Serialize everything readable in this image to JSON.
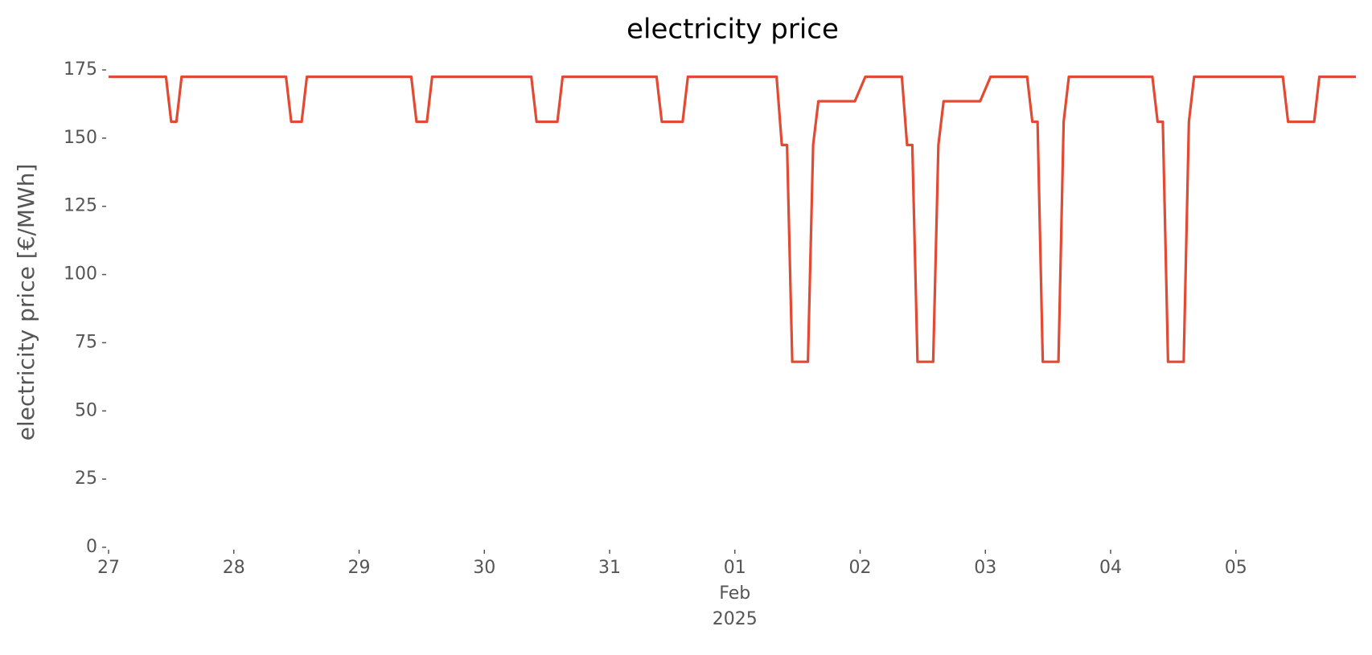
{
  "chart_data": {
    "type": "line",
    "title": "electricity price",
    "ylabel": "electricity price [€/MWh]",
    "color": "#E24A33",
    "x": [
      "2025-01-27T00:00",
      "2025-01-27T11:00",
      "2025-01-27T12:00",
      "2025-01-27T13:00",
      "2025-01-27T14:00",
      "2025-01-28T10:00",
      "2025-01-28T11:00",
      "2025-01-28T13:00",
      "2025-01-28T14:00",
      "2025-01-29T10:00",
      "2025-01-29T11:00",
      "2025-01-29T13:00",
      "2025-01-29T14:00",
      "2025-01-30T09:00",
      "2025-01-30T10:00",
      "2025-01-30T14:00",
      "2025-01-30T15:00",
      "2025-01-31T09:00",
      "2025-01-31T10:00",
      "2025-01-31T14:00",
      "2025-01-31T15:00",
      "2025-02-01T08:00",
      "2025-02-01T09:00",
      "2025-02-01T10:00",
      "2025-02-01T11:00",
      "2025-02-01T14:00",
      "2025-02-01T15:00",
      "2025-02-01T16:00",
      "2025-02-01T23:00",
      "2025-02-02T01:00",
      "2025-02-02T08:00",
      "2025-02-02T09:00",
      "2025-02-02T10:00",
      "2025-02-02T11:00",
      "2025-02-02T14:00",
      "2025-02-02T15:00",
      "2025-02-02T16:00",
      "2025-02-02T23:00",
      "2025-02-03T01:00",
      "2025-02-03T08:00",
      "2025-02-03T09:00",
      "2025-02-03T10:00",
      "2025-02-03T11:00",
      "2025-02-03T14:00",
      "2025-02-03T15:00",
      "2025-02-03T16:00",
      "2025-02-04T08:00",
      "2025-02-04T09:00",
      "2025-02-04T10:00",
      "2025-02-04T11:00",
      "2025-02-04T14:00",
      "2025-02-04T15:00",
      "2025-02-04T16:00",
      "2025-02-05T09:00",
      "2025-02-05T10:00",
      "2025-02-05T15:00",
      "2025-02-05T16:00",
      "2025-02-05T23:00"
    ],
    "values": [
      172.5,
      172.5,
      156,
      156,
      172.5,
      172.5,
      156,
      156,
      172.5,
      172.5,
      156,
      156,
      172.5,
      172.5,
      156,
      156,
      172.5,
      172.5,
      156,
      156,
      172.5,
      172.5,
      147.5,
      147.5,
      68,
      68,
      147.5,
      163.5,
      163.5,
      172.5,
      172.5,
      147.5,
      147.5,
      68,
      68,
      147.5,
      163.5,
      163.5,
      172.5,
      172.5,
      156,
      156,
      68,
      68,
      156,
      172.5,
      172.5,
      156,
      156,
      68,
      68,
      156,
      172.5,
      172.5,
      156,
      156,
      172.5,
      172.5
    ],
    "xlim": [
      "2025-01-27T00:00",
      "2025-02-05T23:00"
    ],
    "xticks": [
      {
        "value": "2025-01-27T00:00",
        "label": "27"
      },
      {
        "value": "2025-01-28T00:00",
        "label": "28"
      },
      {
        "value": "2025-01-29T00:00",
        "label": "29"
      },
      {
        "value": "2025-01-30T00:00",
        "label": "30"
      },
      {
        "value": "2025-01-31T00:00",
        "label": "31"
      },
      {
        "value": "2025-02-01T00:00",
        "label": "01\nFeb\n2025"
      },
      {
        "value": "2025-02-02T00:00",
        "label": "02"
      },
      {
        "value": "2025-02-03T00:00",
        "label": "03"
      },
      {
        "value": "2025-02-04T00:00",
        "label": "04"
      },
      {
        "value": "2025-02-05T00:00",
        "label": "05"
      }
    ],
    "ylim": [
      0,
      175
    ],
    "yticks": [
      0,
      25,
      50,
      75,
      100,
      125,
      150,
      175
    ],
    "grid": false
  }
}
